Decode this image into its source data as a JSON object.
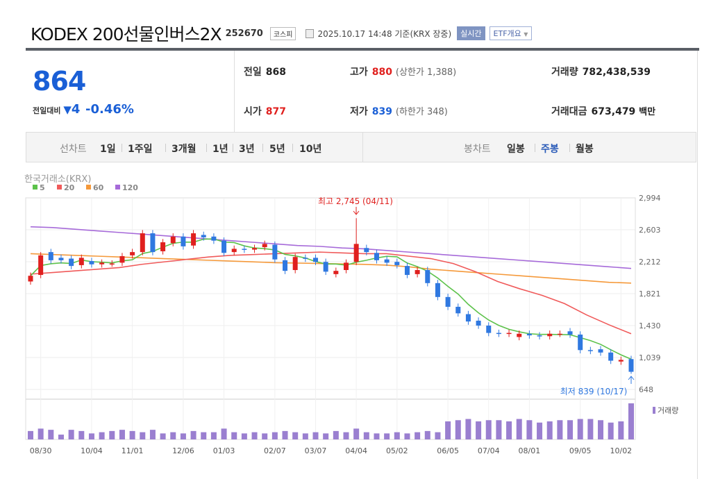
{
  "header": {
    "title": "KODEX 200선물인버스2X",
    "code": "252670",
    "market": "코스피",
    "timestamp": "2025.10.17 14:48 기준(KRX 장중)",
    "realtime": "실시간",
    "etf_overview": "ETF개요"
  },
  "quote": {
    "price": "864",
    "change_label": "전일대비",
    "change": "4",
    "change_pct": "-0.46%",
    "prev_close_label": "전일",
    "prev_close": "868",
    "open_label": "시가",
    "open": "877",
    "high_label": "고가",
    "high": "880",
    "upper_limit": "(상한가 1,388)",
    "low_label": "저가",
    "low": "839",
    "lower_limit": "(하한가 348)",
    "volume_label": "거래량",
    "volume": "782,438,539",
    "amount_label": "거래대금",
    "amount": "673,479",
    "amount_unit": "백만"
  },
  "tabs": {
    "line_label": "선차트",
    "line": [
      "1일",
      "1주일",
      "3개월",
      "1년",
      "3년",
      "5년",
      "10년"
    ],
    "candle_label": "봉차트",
    "candle": [
      "일봉",
      "주봉",
      "월봉"
    ],
    "active": "주봉"
  },
  "colors": {
    "up": "#e0201e",
    "down": "#2f78e0",
    "ma5": "#5cc24a",
    "ma20": "#f05a5a",
    "ma60": "#f5993a",
    "ma120": "#a66ad9",
    "volume": "#9a7fd0"
  },
  "chart_data": {
    "type": "candlestick",
    "source": "한국거래소(KRX)",
    "legend": [
      "5",
      "20",
      "60",
      "120"
    ],
    "y_ticks": [
      "2,994",
      "2,603",
      "2,212",
      "1,821",
      "1,430",
      "1,039",
      "648"
    ],
    "ylim": [
      648,
      2994
    ],
    "x_labels": [
      "08/30",
      "10/04",
      "11/01",
      "12/06",
      "01/03",
      "02/07",
      "03/07",
      "04/04",
      "05/02",
      "06/05",
      "07/04",
      "08/01",
      "09/05",
      "10/02"
    ],
    "x_label_index": [
      1,
      6,
      10,
      15,
      19,
      24,
      28,
      32,
      36,
      41,
      45,
      49,
      54,
      58
    ],
    "close": [
      2040,
      2290,
      2230,
      2230,
      2160,
      2260,
      2180,
      2200,
      2190,
      2280,
      2330,
      2560,
      2330,
      2450,
      2520,
      2400,
      2560,
      2510,
      2470,
      2320,
      2370,
      2360,
      2380,
      2430,
      2240,
      2100,
      2270,
      2250,
      2210,
      2090,
      2100,
      2200,
      2430,
      2330,
      2230,
      2200,
      2170,
      2050,
      2110,
      1950,
      1780,
      1660,
      1580,
      1480,
      1430,
      1340,
      1330,
      1340,
      1330,
      1310,
      1300,
      1330,
      1330,
      1320,
      1130,
      1120,
      1100,
      1000,
      1010,
      864
    ],
    "open": [
      1970,
      2050,
      2330,
      2260,
      2250,
      2170,
      2220,
      2180,
      2190,
      2200,
      2290,
      2330,
      2560,
      2340,
      2440,
      2520,
      2410,
      2540,
      2520,
      2470,
      2330,
      2370,
      2360,
      2390,
      2420,
      2230,
      2110,
      2260,
      2260,
      2210,
      2060,
      2110,
      2210,
      2380,
      2320,
      2240,
      2210,
      2160,
      2060,
      2110,
      1950,
      1780,
      1660,
      1570,
      1490,
      1430,
      1340,
      1330,
      1290,
      1330,
      1310,
      1300,
      1330,
      1360,
      1320,
      1130,
      1140,
      1100,
      990,
      1020
    ],
    "annotations": {
      "max": "최고 2,745 (04/11)",
      "min": "최저 839 (10/17)",
      "max_value": 2745,
      "max_index": 32,
      "min_value": 839,
      "min_index": 59
    },
    "ma20": [
      2060,
      2080,
      2100,
      2120,
      2140,
      2180,
      2210,
      2240,
      2270,
      2290,
      2300,
      2310,
      2320,
      2330,
      2320,
      2310,
      2310,
      2280,
      2250,
      2190,
      2090,
      1970,
      1880,
      1800,
      1700,
      1560,
      1440,
      1330
    ],
    "ma60": [
      2310,
      2300,
      2290,
      2280,
      2270,
      2260,
      2250,
      2240,
      2230,
      2220,
      2210,
      2200,
      2195,
      2190,
      2185,
      2180,
      2170,
      2150,
      2120,
      2100,
      2080,
      2060,
      2040,
      2020,
      2000,
      1980,
      1960,
      1950
    ],
    "ma120": [
      2640,
      2630,
      2610,
      2590,
      2570,
      2550,
      2530,
      2510,
      2490,
      2470,
      2450,
      2430,
      2410,
      2400,
      2380,
      2370,
      2350,
      2330,
      2310,
      2290,
      2270,
      2250,
      2230,
      2210,
      2190,
      2170,
      2150,
      2130
    ],
    "volume_label": "거래량",
    "volume": [
      14,
      18,
      16,
      8,
      16,
      14,
      10,
      12,
      14,
      16,
      14,
      12,
      16,
      10,
      12,
      10,
      14,
      12,
      12,
      18,
      12,
      10,
      12,
      10,
      12,
      14,
      12,
      10,
      12,
      10,
      14,
      12,
      18,
      12,
      10,
      10,
      12,
      10,
      12,
      14,
      12,
      30,
      32,
      34,
      30,
      32,
      32,
      30,
      34,
      32,
      28,
      30,
      32,
      32,
      34,
      34,
      32,
      28,
      30,
      60
    ]
  }
}
